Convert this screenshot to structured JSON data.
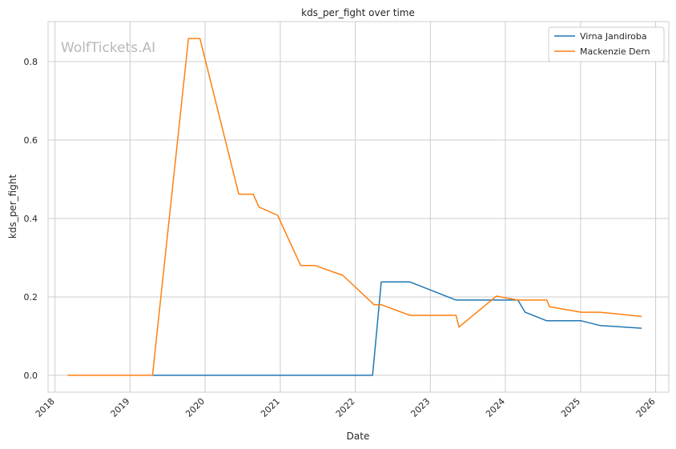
{
  "chart_data": {
    "type": "line",
    "title": "kds_per_fight over time",
    "xlabel": "Date",
    "ylabel": "kds_per_fight",
    "watermark": "WolfTickets.AI",
    "x_ticks": [
      "2018",
      "2019",
      "2020",
      "2021",
      "2022",
      "2023",
      "2024",
      "2025",
      "2026"
    ],
    "y_ticks": [
      "0.0",
      "0.2",
      "0.4",
      "0.6",
      "0.8"
    ],
    "xlim": [
      "2017-11-28",
      "2026-03-06"
    ],
    "ylim": [
      -0.043,
      0.902
    ],
    "grid": true,
    "legend_position": "top-right",
    "series": [
      {
        "name": "Virna Jandiroba",
        "color": "#1f77b4",
        "points": [
          [
            "2019-04-20",
            0.0
          ],
          [
            "2022-03-26",
            0.0
          ],
          [
            "2022-05-07",
            0.238
          ],
          [
            "2022-09-24",
            0.238
          ],
          [
            "2023-05-06",
            0.192
          ],
          [
            "2024-03-02",
            0.192
          ],
          [
            "2024-04-06",
            0.161
          ],
          [
            "2024-07-20",
            0.139
          ],
          [
            "2025-01-04",
            0.139
          ],
          [
            "2025-04-05",
            0.127
          ],
          [
            "2025-10-25",
            0.12
          ]
        ]
      },
      {
        "name": "Mackenzie Dern",
        "color": "#ff7f0e",
        "points": [
          [
            "2018-03-03",
            0.0
          ],
          [
            "2019-04-20",
            0.0
          ],
          [
            "2019-10-12",
            0.859
          ],
          [
            "2019-12-07",
            0.859
          ],
          [
            "2020-06-13",
            0.462
          ],
          [
            "2020-08-22",
            0.462
          ],
          [
            "2020-09-19",
            0.429
          ],
          [
            "2020-12-19",
            0.408
          ],
          [
            "2021-04-10",
            0.28
          ],
          [
            "2021-06-19",
            0.28
          ],
          [
            "2021-10-09",
            0.259
          ],
          [
            "2021-10-30",
            0.256
          ],
          [
            "2022-04-02",
            0.18
          ],
          [
            "2022-05-07",
            0.18
          ],
          [
            "2022-09-24",
            0.153
          ],
          [
            "2023-05-06",
            0.153
          ],
          [
            "2023-05-20",
            0.123
          ],
          [
            "2023-11-18",
            0.202
          ],
          [
            "2024-03-02",
            0.192
          ],
          [
            "2024-07-20",
            0.192
          ],
          [
            "2024-08-03",
            0.175
          ],
          [
            "2025-01-04",
            0.161
          ],
          [
            "2025-04-05",
            0.161
          ],
          [
            "2025-10-25",
            0.15
          ]
        ]
      }
    ]
  }
}
